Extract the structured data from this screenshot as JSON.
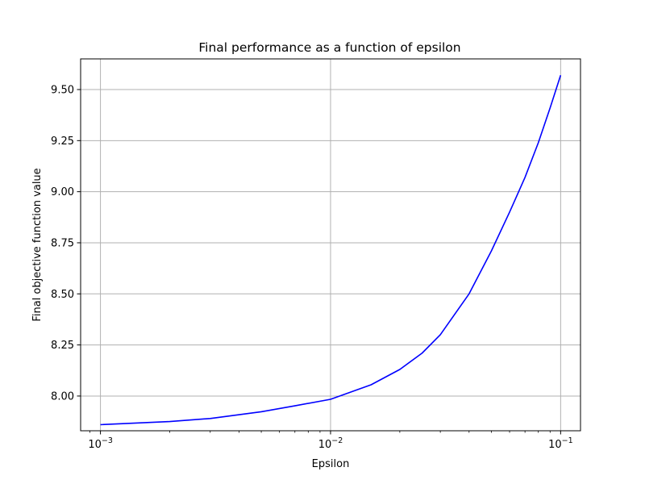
{
  "chart_data": {
    "type": "line",
    "title": "Final performance as a function of epsilon",
    "xlabel": "Epsilon",
    "ylabel": "Final objective function value",
    "x_scale": "log",
    "xlim": [
      0.00082,
      0.122
    ],
    "ylim": [
      7.83,
      9.65
    ],
    "grid": true,
    "x_ticks": [
      {
        "value": 0.001,
        "base": "10",
        "exp": "−3"
      },
      {
        "value": 0.01,
        "base": "10",
        "exp": "−2"
      },
      {
        "value": 0.1,
        "base": "10",
        "exp": "−1"
      }
    ],
    "y_ticks": [
      {
        "value": 8.0,
        "label": "8.00"
      },
      {
        "value": 8.25,
        "label": "8.25"
      },
      {
        "value": 8.5,
        "label": "8.50"
      },
      {
        "value": 8.75,
        "label": "8.75"
      },
      {
        "value": 9.0,
        "label": "9.00"
      },
      {
        "value": 9.25,
        "label": "9.25"
      },
      {
        "value": 9.5,
        "label": "9.50"
      }
    ],
    "series": [
      {
        "color": "#0000ff",
        "x": [
          0.001,
          0.002,
          0.003,
          0.005,
          0.007,
          0.01,
          0.015,
          0.02,
          0.025,
          0.03,
          0.04,
          0.05,
          0.06,
          0.07,
          0.08,
          0.09,
          0.1
        ],
        "y": [
          7.86,
          7.875,
          7.89,
          7.923,
          7.952,
          7.984,
          8.055,
          8.13,
          8.21,
          8.3,
          8.5,
          8.71,
          8.9,
          9.07,
          9.24,
          9.41,
          9.57
        ]
      }
    ]
  }
}
